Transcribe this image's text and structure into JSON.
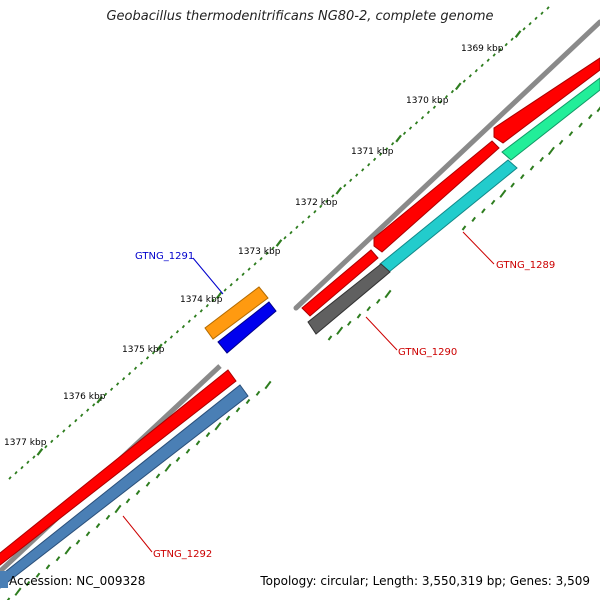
{
  "header": {
    "title": "Geobacillus thermodenitrificans NG80-2, complete genome"
  },
  "footer": {
    "accession": "Accession: NC_009328",
    "summary": "Topology: circular; Length: 3,550,319 bp; Genes: 3,509"
  },
  "ruler": {
    "labels": [
      "1369 kbp",
      "1370 kbp",
      "1371 kbp",
      "1372 kbp",
      "1373 kbp",
      "1374 kbp",
      "1375 kbp",
      "1376 kbp",
      "1377 kbp"
    ],
    "tick_color": "#2e7d1f"
  },
  "genes": {
    "gtng_1289": {
      "label": "GTNG_1289",
      "label_color": "#cc0000"
    },
    "gtng_1290": {
      "label": "GTNG_1290",
      "label_color": "#cc0000"
    },
    "gtng_1291": {
      "label": "GTNG_1291",
      "label_color": "#0000cc"
    },
    "gtng_1292": {
      "label": "GTNG_1292",
      "label_color": "#cc0000"
    }
  },
  "colors": {
    "backbone": "#8a8a8a",
    "cds_red": "#ff0000",
    "cyan": "#22cccc",
    "green": "#22ee99",
    "dark_grey": "#606060",
    "orange": "#ff9a10",
    "blue": "#0000ee",
    "steel_blue": "#4a7fb5"
  }
}
